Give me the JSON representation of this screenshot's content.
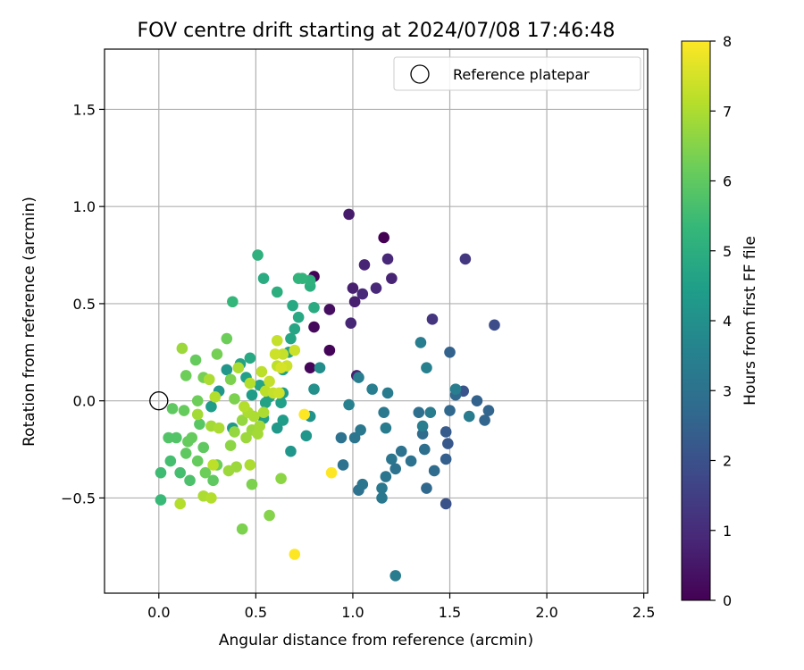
{
  "colors": {
    "grid": "#b0b0b0",
    "axis": "#000000",
    "reference_marker_edge": "#000000",
    "viridis": [
      "#440154",
      "#482878",
      "#3e4989",
      "#31688e",
      "#26828e",
      "#1f9e89",
      "#35b779",
      "#6ece58",
      "#b5de2b",
      "#fde725"
    ]
  },
  "chart_data": {
    "type": "scatter",
    "title": "FOV centre drift starting at 2024/07/08 17:46:48",
    "xlabel": "Angular distance from reference (arcmin)",
    "ylabel": "Rotation from reference (arcmin)",
    "xlim": [
      -0.28,
      2.52
    ],
    "ylim": [
      -0.99,
      1.81
    ],
    "grid": true,
    "x_ticks": [
      0.0,
      0.5,
      1.0,
      1.5,
      2.0,
      2.5
    ],
    "x_tick_labels": [
      "0.0",
      "0.5",
      "1.0",
      "1.5",
      "2.0",
      "2.5"
    ],
    "y_ticks": [
      -0.5,
      0.0,
      0.5,
      1.0,
      1.5
    ],
    "y_tick_labels": [
      "−0.5",
      "0.0",
      "0.5",
      "1.0",
      "1.5"
    ],
    "legend": {
      "placement": "top-right",
      "entries": [
        {
          "label": "Reference platepar",
          "marker": "open-circle"
        }
      ]
    },
    "reference_point": {
      "x": 0.0,
      "y": 0.0
    },
    "colorbar": {
      "label": "Hours from first FF file",
      "colormap": "viridis",
      "range": [
        0,
        8
      ],
      "ticks": [
        0,
        1,
        2,
        3,
        4,
        5,
        6,
        7,
        8
      ],
      "tick_labels": [
        "0",
        "1",
        "2",
        "3",
        "4",
        "5",
        "6",
        "7",
        "8"
      ]
    },
    "points": [
      {
        "x": 1.16,
        "y": 0.84,
        "hours": 0.0
      },
      {
        "x": 0.8,
        "y": 0.64,
        "hours": 0.05
      },
      {
        "x": 0.88,
        "y": 0.26,
        "hours": 0.1
      },
      {
        "x": 0.78,
        "y": 0.17,
        "hours": 0.12
      },
      {
        "x": 0.8,
        "y": 0.38,
        "hours": 0.2
      },
      {
        "x": 0.88,
        "y": 0.47,
        "hours": 0.3
      },
      {
        "x": 0.98,
        "y": 0.96,
        "hours": 0.6
      },
      {
        "x": 1.18,
        "y": 0.73,
        "hours": 0.9
      },
      {
        "x": 1.06,
        "y": 0.7,
        "hours": 0.8
      },
      {
        "x": 1.0,
        "y": 0.58,
        "hours": 0.7
      },
      {
        "x": 1.05,
        "y": 0.55,
        "hours": 0.9
      },
      {
        "x": 1.12,
        "y": 0.58,
        "hours": 0.9
      },
      {
        "x": 1.2,
        "y": 0.63,
        "hours": 0.8
      },
      {
        "x": 1.01,
        "y": 0.51,
        "hours": 0.7
      },
      {
        "x": 0.99,
        "y": 0.4,
        "hours": 0.85
      },
      {
        "x": 1.02,
        "y": 0.13,
        "hours": 0.7
      },
      {
        "x": 1.41,
        "y": 0.42,
        "hours": 1.2
      },
      {
        "x": 1.58,
        "y": 0.73,
        "hours": 1.3
      },
      {
        "x": 1.73,
        "y": 0.39,
        "hours": 1.9
      },
      {
        "x": 1.48,
        "y": -0.53,
        "hours": 2.0
      },
      {
        "x": 1.57,
        "y": 0.05,
        "hours": 2.1
      },
      {
        "x": 1.49,
        "y": -0.22,
        "hours": 2.2
      },
      {
        "x": 1.48,
        "y": -0.16,
        "hours": 2.3
      },
      {
        "x": 1.48,
        "y": -0.3,
        "hours": 2.4
      },
      {
        "x": 1.5,
        "y": 0.25,
        "hours": 2.5
      },
      {
        "x": 1.64,
        "y": 0.0,
        "hours": 2.5
      },
      {
        "x": 1.68,
        "y": -0.1,
        "hours": 2.6
      },
      {
        "x": 1.7,
        "y": -0.05,
        "hours": 2.6
      },
      {
        "x": 1.53,
        "y": 0.03,
        "hours": 2.7
      },
      {
        "x": 1.5,
        "y": -0.05,
        "hours": 2.7
      },
      {
        "x": 1.38,
        "y": -0.45,
        "hours": 2.7
      },
      {
        "x": 1.42,
        "y": -0.36,
        "hours": 2.8
      },
      {
        "x": 1.36,
        "y": -0.17,
        "hours": 2.8
      },
      {
        "x": 1.34,
        "y": -0.06,
        "hours": 2.9
      },
      {
        "x": 1.37,
        "y": -0.25,
        "hours": 2.9
      },
      {
        "x": 1.3,
        "y": -0.31,
        "hours": 3.0
      },
      {
        "x": 1.25,
        "y": -0.26,
        "hours": 3.0
      },
      {
        "x": 1.22,
        "y": -0.35,
        "hours": 3.0
      },
      {
        "x": 1.2,
        "y": -0.3,
        "hours": 3.1
      },
      {
        "x": 1.17,
        "y": -0.39,
        "hours": 3.1
      },
      {
        "x": 1.15,
        "y": -0.45,
        "hours": 3.2
      },
      {
        "x": 1.15,
        "y": -0.5,
        "hours": 3.2
      },
      {
        "x": 1.22,
        "y": -0.9,
        "hours": 3.3
      },
      {
        "x": 1.03,
        "y": -0.46,
        "hours": 3.0
      },
      {
        "x": 1.05,
        "y": -0.43,
        "hours": 3.1
      },
      {
        "x": 0.95,
        "y": -0.33,
        "hours": 3.0
      },
      {
        "x": 0.94,
        "y": -0.19,
        "hours": 3.0
      },
      {
        "x": 1.01,
        "y": -0.19,
        "hours": 3.1
      },
      {
        "x": 1.04,
        "y": -0.15,
        "hours": 3.2
      },
      {
        "x": 1.16,
        "y": -0.06,
        "hours": 3.2
      },
      {
        "x": 1.17,
        "y": -0.14,
        "hours": 3.3
      },
      {
        "x": 1.18,
        "y": 0.04,
        "hours": 3.3
      },
      {
        "x": 1.1,
        "y": 0.06,
        "hours": 3.4
      },
      {
        "x": 1.03,
        "y": 0.12,
        "hours": 3.4
      },
      {
        "x": 0.98,
        "y": -0.02,
        "hours": 3.5
      },
      {
        "x": 1.35,
        "y": 0.3,
        "hours": 3.4
      },
      {
        "x": 1.38,
        "y": 0.17,
        "hours": 3.5
      },
      {
        "x": 1.4,
        "y": -0.06,
        "hours": 3.3
      },
      {
        "x": 1.36,
        "y": -0.13,
        "hours": 3.4
      },
      {
        "x": 1.6,
        "y": -0.08,
        "hours": 3.3
      },
      {
        "x": 1.53,
        "y": 0.06,
        "hours": 3.4
      },
      {
        "x": 0.83,
        "y": 0.17,
        "hours": 3.9
      },
      {
        "x": 0.8,
        "y": 0.06,
        "hours": 4.0
      },
      {
        "x": 0.78,
        "y": -0.08,
        "hours": 4.1
      },
      {
        "x": 0.76,
        "y": -0.18,
        "hours": 4.2
      },
      {
        "x": 0.68,
        "y": -0.26,
        "hours": 4.2
      },
      {
        "x": 0.61,
        "y": -0.14,
        "hours": 4.3
      },
      {
        "x": 0.64,
        "y": -0.1,
        "hours": 4.4
      },
      {
        "x": 0.64,
        "y": 0.04,
        "hours": 4.4
      },
      {
        "x": 0.63,
        "y": -0.01,
        "hours": 4.5
      },
      {
        "x": 0.64,
        "y": 0.16,
        "hours": 4.5
      },
      {
        "x": 0.67,
        "y": 0.25,
        "hours": 4.6
      },
      {
        "x": 0.68,
        "y": 0.32,
        "hours": 4.7
      },
      {
        "x": 0.7,
        "y": 0.37,
        "hours": 4.7
      },
      {
        "x": 0.69,
        "y": 0.49,
        "hours": 4.8
      },
      {
        "x": 0.72,
        "y": 0.43,
        "hours": 4.8
      },
      {
        "x": 0.8,
        "y": 0.48,
        "hours": 4.9
      },
      {
        "x": 0.78,
        "y": 0.59,
        "hours": 5.0
      },
      {
        "x": 0.78,
        "y": 0.62,
        "hours": 5.1
      },
      {
        "x": 0.72,
        "y": 0.63,
        "hours": 5.2
      },
      {
        "x": 0.74,
        "y": 0.63,
        "hours": 5.2
      },
      {
        "x": 0.61,
        "y": 0.56,
        "hours": 5.0
      },
      {
        "x": 0.54,
        "y": 0.63,
        "hours": 4.9
      },
      {
        "x": 0.51,
        "y": 0.75,
        "hours": 5.1
      },
      {
        "x": 0.38,
        "y": 0.51,
        "hours": 5.3
      },
      {
        "x": 0.47,
        "y": 0.22,
        "hours": 4.8
      },
      {
        "x": 0.42,
        "y": 0.19,
        "hours": 4.6
      },
      {
        "x": 0.45,
        "y": 0.12,
        "hours": 4.5
      },
      {
        "x": 0.48,
        "y": 0.03,
        "hours": 4.4
      },
      {
        "x": 0.35,
        "y": 0.16,
        "hours": 4.2
      },
      {
        "x": 0.31,
        "y": 0.05,
        "hours": 4.2
      },
      {
        "x": 0.27,
        "y": -0.03,
        "hours": 4.4
      },
      {
        "x": 0.38,
        "y": -0.14,
        "hours": 4.3
      },
      {
        "x": 0.54,
        "y": -0.09,
        "hours": 4.5
      },
      {
        "x": 0.57,
        "y": 0.02,
        "hours": 4.6
      },
      {
        "x": 0.55,
        "y": -0.01,
        "hours": 4.6
      },
      {
        "x": 0.52,
        "y": 0.08,
        "hours": 4.7
      },
      {
        "x": 0.01,
        "y": -0.51,
        "hours": 5.4
      },
      {
        "x": 0.01,
        "y": -0.37,
        "hours": 5.5
      },
      {
        "x": 0.06,
        "y": -0.31,
        "hours": 5.6
      },
      {
        "x": 0.11,
        "y": -0.37,
        "hours": 5.6
      },
      {
        "x": 0.16,
        "y": -0.41,
        "hours": 5.7
      },
      {
        "x": 0.09,
        "y": -0.19,
        "hours": 5.8
      },
      {
        "x": 0.05,
        "y": -0.19,
        "hours": 5.8
      },
      {
        "x": 0.14,
        "y": -0.27,
        "hours": 6.0
      },
      {
        "x": 0.15,
        "y": -0.21,
        "hours": 6.1
      },
      {
        "x": 0.17,
        "y": -0.19,
        "hours": 6.1
      },
      {
        "x": 0.21,
        "y": -0.12,
        "hours": 5.9
      },
      {
        "x": 0.23,
        "y": -0.24,
        "hours": 6.0
      },
      {
        "x": 0.2,
        "y": -0.31,
        "hours": 6.1
      },
      {
        "x": 0.24,
        "y": -0.37,
        "hours": 6.2
      },
      {
        "x": 0.28,
        "y": -0.41,
        "hours": 6.0
      },
      {
        "x": 0.3,
        "y": -0.33,
        "hours": 6.2
      },
      {
        "x": 0.07,
        "y": -0.04,
        "hours": 6.0
      },
      {
        "x": 0.13,
        "y": -0.05,
        "hours": 6.1
      },
      {
        "x": 0.2,
        "y": 0.0,
        "hours": 6.2
      },
      {
        "x": 0.23,
        "y": 0.12,
        "hours": 6.3
      },
      {
        "x": 0.19,
        "y": 0.21,
        "hours": 6.1
      },
      {
        "x": 0.14,
        "y": 0.13,
        "hours": 6.2
      },
      {
        "x": 0.3,
        "y": 0.24,
        "hours": 6.3
      },
      {
        "x": 0.35,
        "y": 0.32,
        "hours": 6.2
      },
      {
        "x": 0.37,
        "y": 0.11,
        "hours": 6.4
      },
      {
        "x": 0.39,
        "y": 0.01,
        "hours": 6.4
      },
      {
        "x": 0.43,
        "y": -0.66,
        "hours": 6.4
      },
      {
        "x": 0.57,
        "y": -0.59,
        "hours": 6.5
      },
      {
        "x": 0.48,
        "y": -0.43,
        "hours": 6.4
      },
      {
        "x": 0.63,
        "y": -0.4,
        "hours": 6.6
      },
      {
        "x": 0.37,
        "y": -0.23,
        "hours": 6.6
      },
      {
        "x": 0.39,
        "y": -0.16,
        "hours": 6.7
      },
      {
        "x": 0.43,
        "y": -0.1,
        "hours": 6.7
      },
      {
        "x": 0.45,
        "y": -0.19,
        "hours": 6.8
      },
      {
        "x": 0.48,
        "y": -0.15,
        "hours": 6.8
      },
      {
        "x": 0.51,
        "y": -0.17,
        "hours": 6.9
      },
      {
        "x": 0.52,
        "y": -0.13,
        "hours": 6.9
      },
      {
        "x": 0.54,
        "y": -0.06,
        "hours": 7.0
      },
      {
        "x": 0.49,
        "y": -0.08,
        "hours": 7.0
      },
      {
        "x": 0.46,
        "y": -0.06,
        "hours": 7.0
      },
      {
        "x": 0.44,
        "y": -0.03,
        "hours": 7.1
      },
      {
        "x": 0.36,
        "y": -0.36,
        "hours": 6.8
      },
      {
        "x": 0.4,
        "y": -0.34,
        "hours": 6.8
      },
      {
        "x": 0.47,
        "y": -0.33,
        "hours": 7.0
      },
      {
        "x": 0.23,
        "y": -0.49,
        "hours": 7.0
      },
      {
        "x": 0.27,
        "y": -0.5,
        "hours": 7.1
      },
      {
        "x": 0.11,
        "y": -0.53,
        "hours": 7.1
      },
      {
        "x": 0.28,
        "y": -0.33,
        "hours": 7.2
      },
      {
        "x": 0.27,
        "y": -0.13,
        "hours": 6.9
      },
      {
        "x": 0.31,
        "y": -0.14,
        "hours": 7.0
      },
      {
        "x": 0.2,
        "y": -0.07,
        "hours": 6.9
      },
      {
        "x": 0.12,
        "y": 0.27,
        "hours": 6.8
      },
      {
        "x": 0.26,
        "y": 0.11,
        "hours": 7.0
      },
      {
        "x": 0.29,
        "y": 0.02,
        "hours": 7.1
      },
      {
        "x": 0.41,
        "y": 0.17,
        "hours": 7.0
      },
      {
        "x": 0.47,
        "y": 0.09,
        "hours": 7.1
      },
      {
        "x": 0.53,
        "y": 0.15,
        "hours": 7.2
      },
      {
        "x": 0.55,
        "y": 0.05,
        "hours": 7.2
      },
      {
        "x": 0.57,
        "y": 0.1,
        "hours": 7.3
      },
      {
        "x": 0.59,
        "y": 0.04,
        "hours": 7.3
      },
      {
        "x": 0.62,
        "y": 0.04,
        "hours": 7.4
      },
      {
        "x": 0.61,
        "y": 0.18,
        "hours": 7.2
      },
      {
        "x": 0.64,
        "y": 0.24,
        "hours": 7.3
      },
      {
        "x": 0.6,
        "y": 0.24,
        "hours": 7.4
      },
      {
        "x": 0.61,
        "y": 0.31,
        "hours": 7.3
      },
      {
        "x": 0.66,
        "y": 0.18,
        "hours": 7.4
      },
      {
        "x": 0.7,
        "y": 0.26,
        "hours": 7.4
      },
      {
        "x": 0.63,
        "y": 0.17,
        "hours": 7.5
      },
      {
        "x": 0.75,
        "y": -0.07,
        "hours": 8.0
      },
      {
        "x": 0.89,
        "y": -0.37,
        "hours": 8.0
      },
      {
        "x": 0.7,
        "y": -0.79,
        "hours": 8.0
      }
    ]
  }
}
